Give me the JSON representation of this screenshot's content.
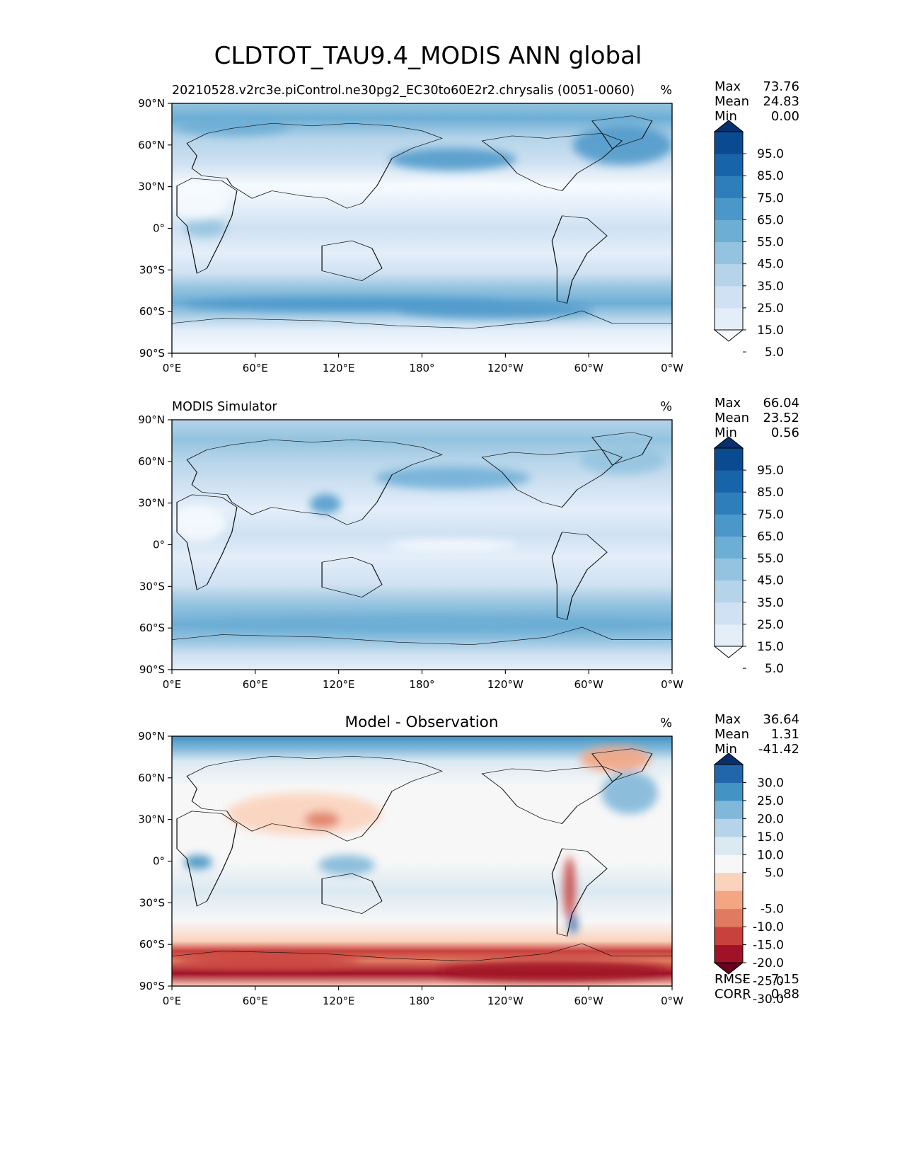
{
  "figure": {
    "title": "CLDTOT_TAU9.4_MODIS ANN global"
  },
  "chart_data": [
    {
      "type": "heatmap",
      "map_projection": "plate-carree",
      "title_left": "20210528.v2rc3e.piControl.ne30pg2_EC30to60E2r2.chrysalis (0051-0060)",
      "title_center": "",
      "units": "%",
      "x_ticks": [
        "0°E",
        "60°E",
        "120°E",
        "180°",
        "120°W",
        "60°W",
        "0°W"
      ],
      "y_ticks": [
        "90°N",
        "60°N",
        "30°N",
        "0°",
        "30°S",
        "60°S",
        "90°S"
      ],
      "stats": [
        {
          "label": "Max",
          "value": "73.76"
        },
        {
          "label": "Mean",
          "value": "24.83"
        },
        {
          "label": "Min",
          "value": "0.00"
        }
      ],
      "colorbar": {
        "type": "sequential",
        "tick_labels": [
          "95.0",
          "85.0",
          "75.0",
          "65.0",
          "55.0",
          "45.0",
          "35.0",
          "25.0",
          "15.0",
          "5.0"
        ],
        "colors": [
          "#f7fbff",
          "#e3eef9",
          "#cfe1f2",
          "#b5d4e9",
          "#93c3df",
          "#6daed5",
          "#4b97c9",
          "#2f7ebc",
          "#1864aa",
          "#0a4a90",
          "#08306b"
        ],
        "extend": "both"
      },
      "footer_stats": []
    },
    {
      "type": "heatmap",
      "map_projection": "plate-carree",
      "title_left": "MODIS Simulator",
      "title_center": "",
      "units": "%",
      "x_ticks": [
        "0°E",
        "60°E",
        "120°E",
        "180°",
        "120°W",
        "60°W",
        "0°W"
      ],
      "y_ticks": [
        "90°N",
        "60°N",
        "30°N",
        "0°",
        "30°S",
        "60°S",
        "90°S"
      ],
      "stats": [
        {
          "label": "Max",
          "value": "66.04"
        },
        {
          "label": "Mean",
          "value": "23.52"
        },
        {
          "label": "Min",
          "value": "0.56"
        }
      ],
      "colorbar": {
        "type": "sequential",
        "tick_labels": [
          "95.0",
          "85.0",
          "75.0",
          "65.0",
          "55.0",
          "45.0",
          "35.0",
          "25.0",
          "15.0",
          "5.0"
        ],
        "colors": [
          "#f7fbff",
          "#e3eef9",
          "#cfe1f2",
          "#b5d4e9",
          "#93c3df",
          "#6daed5",
          "#4b97c9",
          "#2f7ebc",
          "#1864aa",
          "#0a4a90",
          "#08306b"
        ],
        "extend": "both"
      },
      "footer_stats": []
    },
    {
      "type": "heatmap",
      "map_projection": "plate-carree",
      "title_left": "",
      "title_center": "Model - Observation",
      "units": "%",
      "x_ticks": [
        "0°E",
        "60°E",
        "120°E",
        "180°",
        "120°W",
        "60°W",
        "0°W"
      ],
      "y_ticks": [
        "90°N",
        "60°N",
        "30°N",
        "0°",
        "30°S",
        "60°S",
        "90°S"
      ],
      "stats": [
        {
          "label": "Max",
          "value": "36.64"
        },
        {
          "label": "Mean",
          "value": "1.31"
        },
        {
          "label": "Min",
          "value": "-41.42"
        }
      ],
      "colorbar": {
        "type": "diverging",
        "tick_labels": [
          "30.0",
          "25.0",
          "20.0",
          "15.0",
          "10.0",
          "5.0",
          "-5.0",
          "-10.0",
          "-15.0",
          "-20.0",
          "-25.0",
          "-30.0"
        ],
        "colors": [
          "#67001f",
          "#a11228",
          "#c8413d",
          "#e07b62",
          "#f4a582",
          "#fbd3bd",
          "#f7f7f7",
          "#dbe9f2",
          "#b5d4e9",
          "#81b8da",
          "#4393c3",
          "#2166ac",
          "#08306b"
        ],
        "extend": "both"
      },
      "footer_stats": [
        {
          "label": "RMSE",
          "value": "7.15"
        },
        {
          "label": "CORR",
          "value": "0.88"
        }
      ]
    }
  ]
}
